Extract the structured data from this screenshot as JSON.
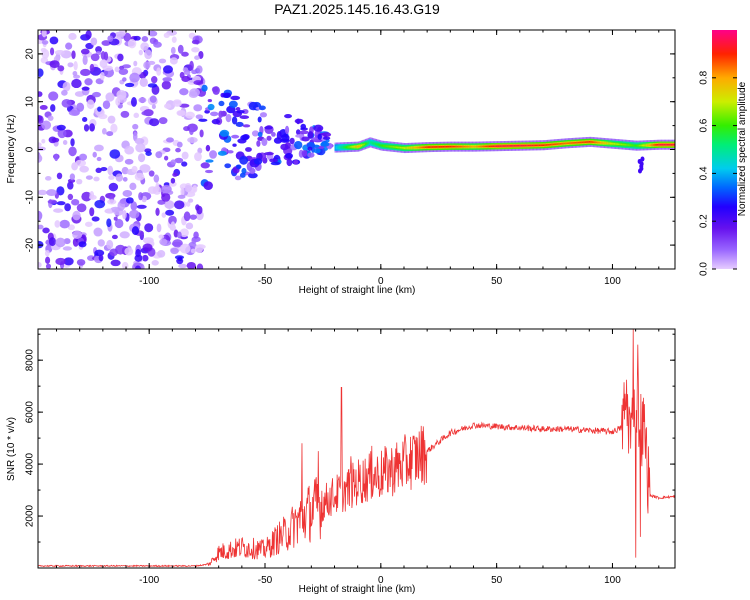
{
  "figure": {
    "title": "PAZ1.2025.145.16.43.G19"
  },
  "colors": {
    "snr_line": "#ee3333",
    "axis": "#000000",
    "background": "#ffffff"
  },
  "chart_data": [
    {
      "type": "heatmap",
      "name": "spectrogram",
      "xlabel": "Height of straight line (km)",
      "ylabel": "Frequency (Hz)",
      "xlim": [
        -148,
        127
      ],
      "ylim": [
        -25,
        25
      ],
      "xticks": [
        -100,
        -50,
        0,
        50,
        100
      ],
      "xtick_labels": [
        "-100",
        "-50",
        "0",
        "50",
        "100"
      ],
      "yticks": [
        -20,
        -10,
        0,
        10,
        20
      ],
      "ytick_labels": [
        "-20",
        "-10",
        "0",
        "10",
        "20"
      ],
      "noise_region_x": [
        -148,
        -77
      ],
      "transition_region_x": [
        -77,
        -22
      ],
      "ridge": [
        {
          "x": -20,
          "f": 0.4,
          "a": 0.4
        },
        {
          "x": -10,
          "f": 0.6,
          "a": 0.8
        },
        {
          "x": -5,
          "f": 1.5,
          "a": 0.5
        },
        {
          "x": 0,
          "f": 0.8,
          "a": 0.6
        },
        {
          "x": 10,
          "f": 0.3,
          "a": 0.7
        },
        {
          "x": 20,
          "f": 0.5,
          "a": 0.9
        },
        {
          "x": 30,
          "f": 0.6,
          "a": 0.9
        },
        {
          "x": 40,
          "f": 0.6,
          "a": 0.8
        },
        {
          "x": 50,
          "f": 0.7,
          "a": 0.95
        },
        {
          "x": 60,
          "f": 0.8,
          "a": 0.95
        },
        {
          "x": 70,
          "f": 0.9,
          "a": 0.9
        },
        {
          "x": 80,
          "f": 1.3,
          "a": 0.85
        },
        {
          "x": 90,
          "f": 1.6,
          "a": 0.9
        },
        {
          "x": 100,
          "f": 1.2,
          "a": 0.7
        },
        {
          "x": 110,
          "f": 0.8,
          "a": 0.6
        },
        {
          "x": 120,
          "f": 1.0,
          "a": 0.95
        },
        {
          "x": 127,
          "f": 1.0,
          "a": 0.95
        }
      ]
    },
    {
      "type": "line",
      "name": "snr",
      "xlabel": "Height of straight line (km)",
      "ylabel": "SNR (10 * v/v)",
      "xlim": [
        -148,
        127
      ],
      "ylim": [
        0,
        9200
      ],
      "xticks": [
        -100,
        -50,
        0,
        50,
        100
      ],
      "xtick_labels": [
        "-100",
        "-50",
        "0",
        "50",
        "100"
      ],
      "yticks": [
        2000,
        4000,
        6000,
        8000
      ],
      "ytick_labels": [
        "2000",
        "4000",
        "6000",
        "8000"
      ],
      "series": [
        {
          "name": "SNR",
          "x": [
            -148,
            -80,
            -74,
            -70,
            -60,
            -50,
            -45,
            -40,
            -35,
            -30,
            -25,
            -20,
            -15,
            -10,
            -5,
            0,
            10,
            20,
            30,
            40,
            50,
            60,
            70,
            80,
            90,
            100,
            104,
            106,
            108,
            110,
            112,
            114,
            116,
            120,
            127
          ],
          "y": [
            80,
            80,
            150,
            600,
            800,
            700,
            1100,
            1400,
            1900,
            2200,
            2500,
            2800,
            3000,
            3300,
            3500,
            3600,
            4000,
            4500,
            5200,
            5500,
            5450,
            5400,
            5350,
            5350,
            5300,
            5250,
            5400,
            6500,
            5000,
            6800,
            5500,
            5200,
            2800,
            2700,
            2750
          ]
        }
      ],
      "spikes": [
        {
          "x": -34,
          "y": 4800
        },
        {
          "x": -27,
          "y": 4500
        },
        {
          "x": -17,
          "y": 6950
        },
        {
          "x": -13,
          "y": 4300
        },
        {
          "x": -4,
          "y": 4700
        },
        {
          "x": 109,
          "y": 9200
        },
        {
          "x": 110,
          "y": 400
        },
        {
          "x": 111,
          "y": 8600
        },
        {
          "x": 112,
          "y": 1200
        }
      ]
    }
  ],
  "colorbar": {
    "label": "Normalized spectral amplitude",
    "ticks": [
      0.0,
      0.2,
      0.4,
      0.6,
      0.8
    ],
    "tick_labels": [
      "0.0",
      "0.2",
      "0.4",
      "0.6",
      "0.8"
    ],
    "range": [
      0,
      1
    ]
  }
}
